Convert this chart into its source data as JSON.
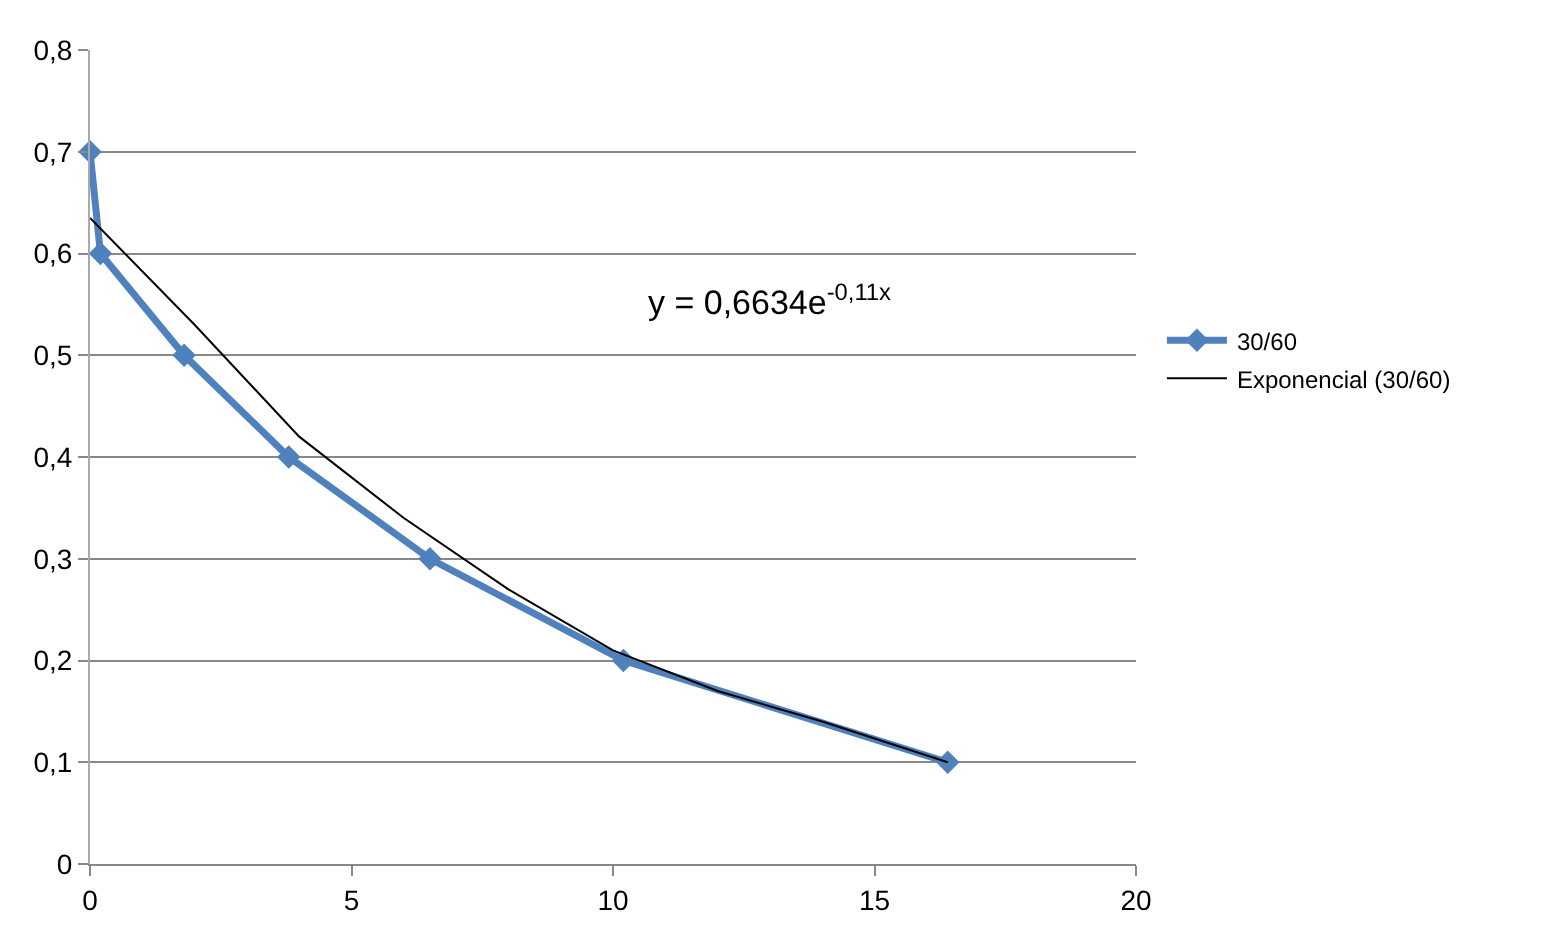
{
  "chart_data": {
    "type": "line",
    "annotations": [
      "y = 0,6634e$^{-0,11x}$"
    ],
    "series": [
      {
        "name": "30/60",
        "color": "#4f81bd",
        "marker": "diamond",
        "x": [
          0,
          0.2,
          1.8,
          3.8,
          6.5,
          10.2,
          16.4
        ],
        "values": [
          0.7,
          0.6,
          0.5,
          0.4,
          0.3,
          0.2,
          0.1
        ]
      },
      {
        "name": "Exponencial (30/60)",
        "color": "#000000",
        "marker": "none",
        "x": [
          0,
          2,
          4,
          6,
          8,
          10,
          12,
          14,
          16.4
        ],
        "values": [
          0.635,
          0.53,
          0.42,
          0.34,
          0.27,
          0.21,
          0.17,
          0.14,
          0.1
        ]
      }
    ],
    "xlim": [
      0,
      20
    ],
    "xticks": [
      0,
      5,
      10,
      15,
      20
    ],
    "ylim": [
      0,
      0.8
    ],
    "yticks": [
      {
        "value": 0,
        "label": "0"
      },
      {
        "value": 0.1,
        "label": "0,1"
      },
      {
        "value": 0.2,
        "label": "0,2"
      },
      {
        "value": 0.3,
        "label": "0,3"
      },
      {
        "value": 0.4,
        "label": "0,4"
      },
      {
        "value": 0.5,
        "label": "0,5"
      },
      {
        "value": 0.6,
        "label": "0,6"
      },
      {
        "value": 0.7,
        "label": "0,7"
      },
      {
        "value": 0.8,
        "label": "0,8"
      }
    ],
    "grid": "y",
    "legend": "right"
  }
}
